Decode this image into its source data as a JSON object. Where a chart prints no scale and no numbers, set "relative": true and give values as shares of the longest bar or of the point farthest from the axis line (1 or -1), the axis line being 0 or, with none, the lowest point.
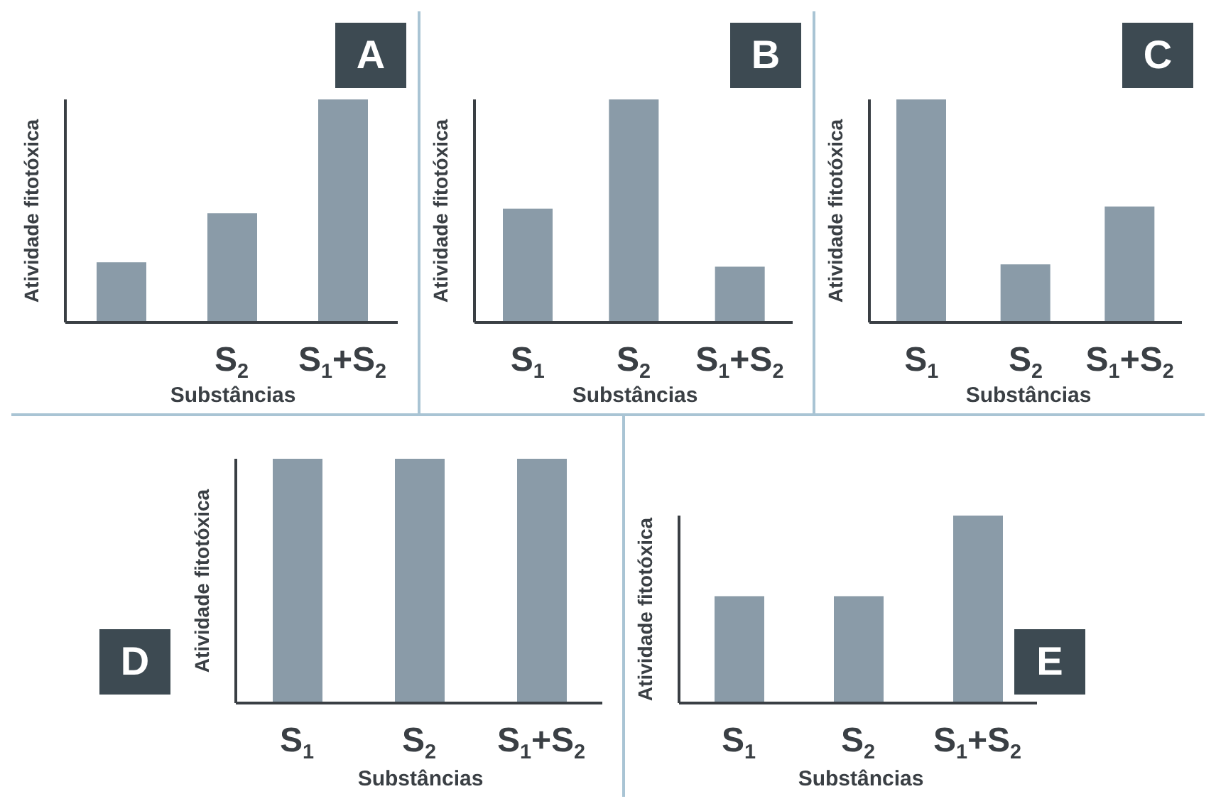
{
  "chart_data": [
    {
      "type": "bar",
      "title": "A",
      "xlabel": "Substâncias",
      "ylabel": "Atividade fitotóxica",
      "categories": [
        null,
        "S$_{2}$",
        "S$_{1}$+S$_{2}$"
      ],
      "values": [
        0.27,
        0.49,
        1
      ],
      "color": "#8a9ba8",
      "relative": true
    },
    {
      "type": "bar",
      "title": "B",
      "xlabel": "Substâncias",
      "ylabel": "Atividade fitotóxica",
      "categories": [
        "S$_{1}$",
        "S$_{2}$",
        "S$_{1}$+S$_{2}$"
      ],
      "values": [
        0.51,
        1,
        0.25
      ],
      "color": "#8a9ba8",
      "relative": true
    },
    {
      "type": "bar",
      "title": "C",
      "xlabel": "Substâncias",
      "ylabel": "Atividade fitotóxica",
      "categories": [
        "S$_{1}$",
        "S$_{2}$",
        "S$_{1}$+S$_{2}$"
      ],
      "values": [
        1,
        0.26,
        0.52
      ],
      "color": "#8a9ba8",
      "relative": true
    },
    {
      "type": "bar",
      "title": "D",
      "xlabel": "Substâncias",
      "ylabel": "Atividade fitotóxica",
      "categories": [
        "S$_{1}$",
        "S$_{2}$",
        "S$_{1}$+S$_{2}$"
      ],
      "values": [
        1,
        1,
        1
      ],
      "color": "#8a9ba8",
      "relative": true
    },
    {
      "type": "bar",
      "title": "E",
      "xlabel": "Substâncias",
      "ylabel": "Atividade fitotóxica",
      "categories": [
        "S$_{1}$",
        "S$_{2}$",
        "S$_{1}$+S$_{2}$"
      ],
      "values": [
        0.57,
        0.57,
        1
      ],
      "color": "#8a9ba8",
      "relative": true
    }
  ]
}
